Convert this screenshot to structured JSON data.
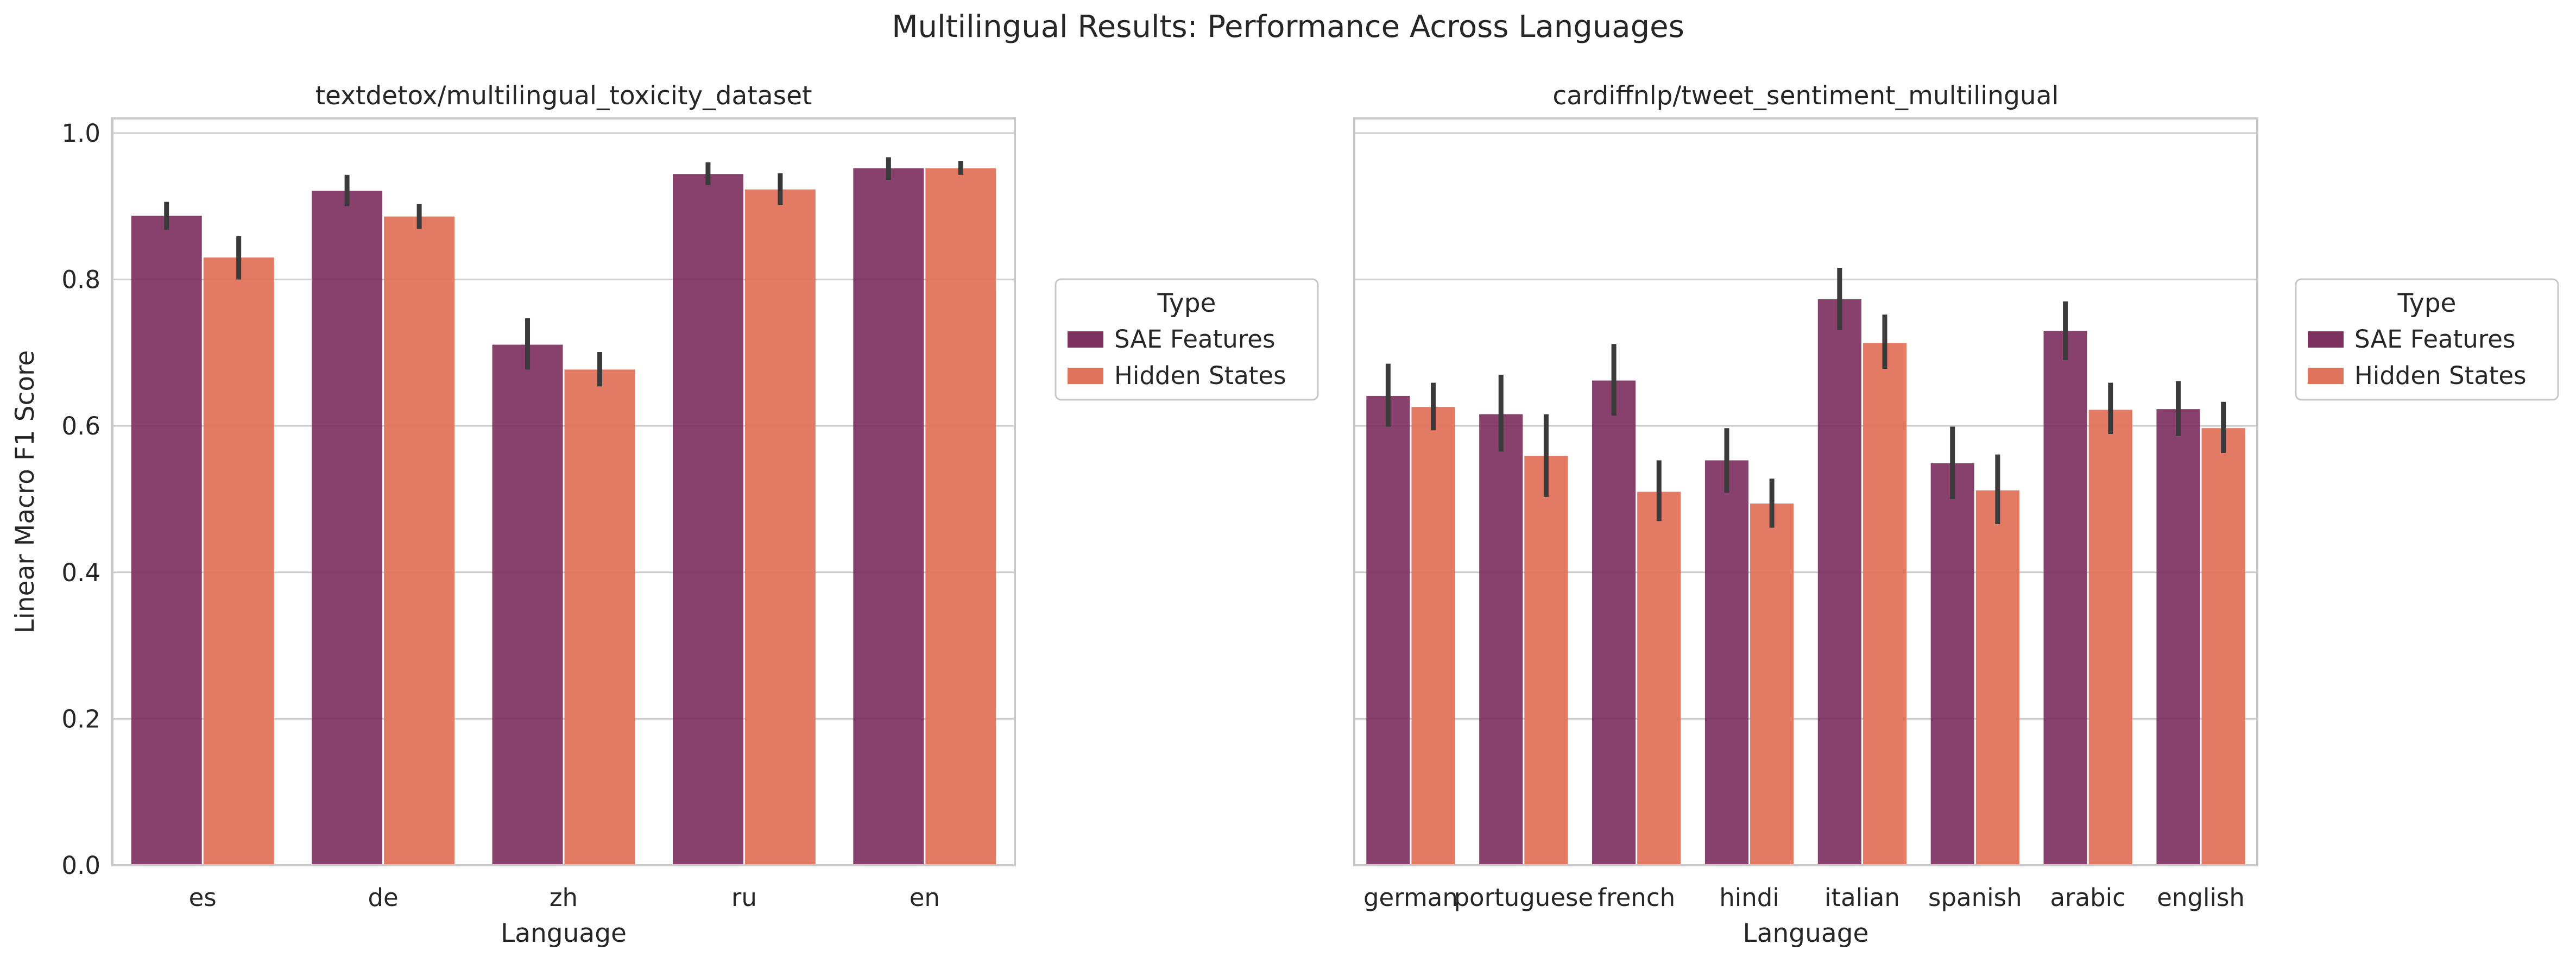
{
  "figure": {
    "title": "Multilingual Results: Performance Across Languages"
  },
  "legend": {
    "title": "Type",
    "entries": [
      "SAE Features",
      "Hidden States"
    ]
  },
  "colors": {
    "SAE Features": "#7d315f",
    "Hidden States": "#e0735c",
    "errorbar": "#3a3a3a",
    "grid": "#cccccc",
    "frame": "#c8c8c8"
  },
  "chart_data": [
    {
      "type": "bar",
      "title": "textdetox/multilingual_toxicity_dataset",
      "xlabel": "Language",
      "ylabel": "Linear Macro F1 Score",
      "ylim": [
        0,
        1.02
      ],
      "yticks": [
        "0.0",
        "0.2",
        "0.4",
        "0.6",
        "0.8",
        "1.0"
      ],
      "grid": true,
      "legend_position": "right",
      "categories": [
        "es",
        "de",
        "zh",
        "ru",
        "en"
      ],
      "series": [
        {
          "name": "SAE Features",
          "values": [
            0.887,
            0.921,
            0.711,
            0.944,
            0.952
          ],
          "ci_low": [
            0.868,
            0.9,
            0.677,
            0.929,
            0.936
          ],
          "ci_high": [
            0.906,
            0.943,
            0.747,
            0.96,
            0.967
          ]
        },
        {
          "name": "Hidden States",
          "values": [
            0.83,
            0.886,
            0.677,
            0.923,
            0.952
          ],
          "ci_low": [
            0.8,
            0.869,
            0.654,
            0.902,
            0.943
          ],
          "ci_high": [
            0.859,
            0.903,
            0.701,
            0.945,
            0.962
          ]
        }
      ]
    },
    {
      "type": "bar",
      "title": "cardiffnlp/tweet_sentiment_multilingual",
      "xlabel": "Language",
      "ylabel": "",
      "ylim": [
        0,
        1.02
      ],
      "yticks": [],
      "grid": true,
      "legend_position": "right",
      "categories": [
        "german",
        "portuguese",
        "french",
        "hindi",
        "italian",
        "spanish",
        "arabic",
        "english"
      ],
      "series": [
        {
          "name": "SAE Features",
          "values": [
            0.641,
            0.616,
            0.662,
            0.553,
            0.773,
            0.549,
            0.73,
            0.623
          ],
          "ci_low": [
            0.599,
            0.565,
            0.614,
            0.509,
            0.731,
            0.5,
            0.69,
            0.586
          ],
          "ci_high": [
            0.685,
            0.67,
            0.712,
            0.597,
            0.816,
            0.599,
            0.77,
            0.661
          ]
        },
        {
          "name": "Hidden States",
          "values": [
            0.626,
            0.559,
            0.51,
            0.494,
            0.713,
            0.512,
            0.622,
            0.597
          ],
          "ci_low": [
            0.594,
            0.503,
            0.47,
            0.461,
            0.678,
            0.466,
            0.589,
            0.563
          ],
          "ci_high": [
            0.659,
            0.616,
            0.553,
            0.528,
            0.752,
            0.561,
            0.659,
            0.633
          ]
        }
      ]
    }
  ]
}
